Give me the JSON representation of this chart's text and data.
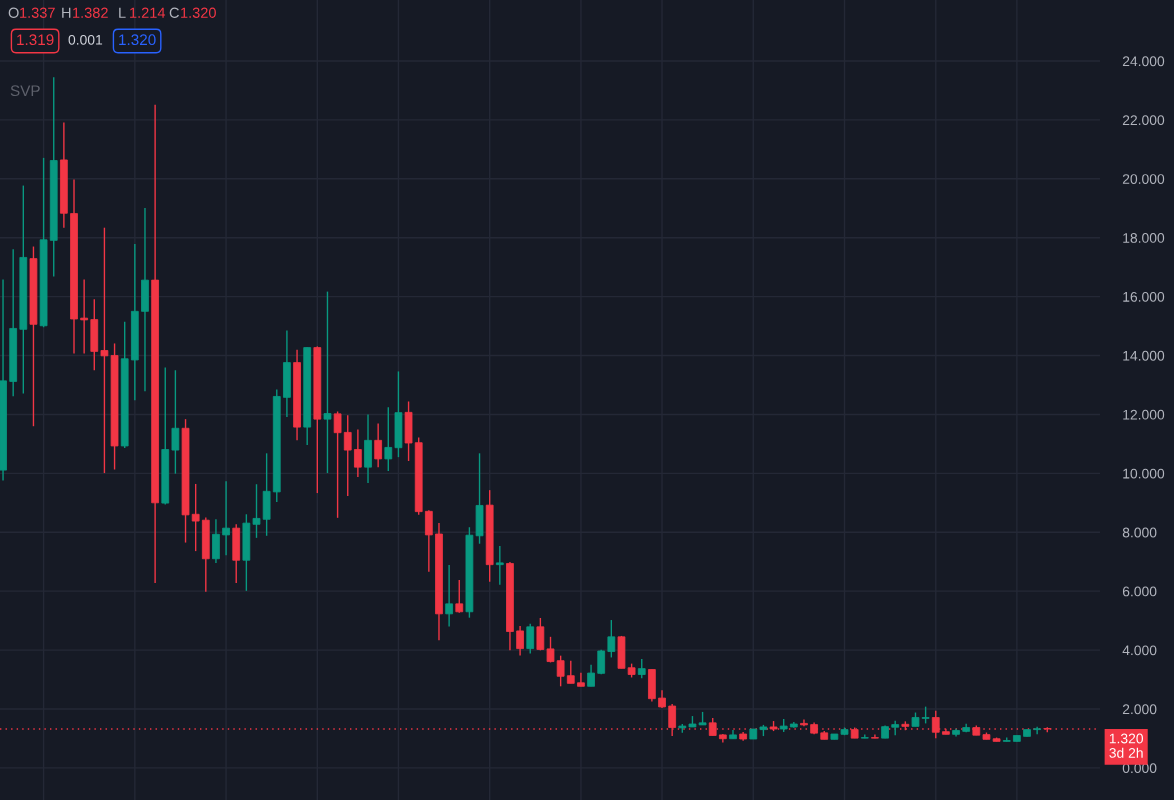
{
  "chart_data": {
    "type": "candlestick",
    "categories": [
      null,
      null,
      null,
      null,
      null,
      null,
      null,
      null,
      null,
      null,
      null,
      null,
      null,
      null,
      null,
      null,
      null,
      null,
      null,
      null,
      null,
      null,
      null,
      null,
      null,
      null,
      null,
      null,
      null,
      null,
      null,
      null,
      null,
      null,
      null,
      null,
      null,
      null,
      null,
      null,
      null,
      null,
      null,
      null,
      null,
      null,
      null,
      null,
      null,
      null,
      null,
      null,
      null,
      null,
      null,
      null,
      null,
      null,
      null,
      null,
      null,
      null,
      null,
      null,
      null,
      null,
      null,
      null,
      null,
      null,
      null,
      null,
      null,
      null,
      null,
      null,
      null,
      null,
      null,
      null,
      null,
      null,
      null,
      null,
      null,
      null,
      null,
      null,
      null,
      null,
      null,
      null,
      null,
      null,
      null,
      null,
      null,
      null,
      null,
      null,
      null,
      null,
      null,
      null
    ],
    "ohlc": [
      [
        10.11,
        16.58,
        9.76,
        13.14
      ],
      [
        13.12,
        17.61,
        12.62,
        14.92
      ],
      [
        14.89,
        19.77,
        12.71,
        17.33
      ],
      [
        17.29,
        17.7,
        11.6,
        15.06
      ],
      [
        15.01,
        20.71,
        14.96,
        17.93
      ],
      [
        17.91,
        23.45,
        16.68,
        20.62
      ],
      [
        20.64,
        21.91,
        18.34,
        18.83
      ],
      [
        18.82,
        19.98,
        14.07,
        15.24
      ],
      [
        15.27,
        16.58,
        14.07,
        15.21
      ],
      [
        15.22,
        15.91,
        13.5,
        14.14
      ],
      [
        14.17,
        18.34,
        10.01,
        13.99
      ],
      [
        14.0,
        14.41,
        10.13,
        10.93
      ],
      [
        10.93,
        15.15,
        10.86,
        13.89
      ],
      [
        13.85,
        17.79,
        12.48,
        15.5
      ],
      [
        15.5,
        19.01,
        12.79,
        16.56
      ],
      [
        16.56,
        22.51,
        6.28,
        9.0
      ],
      [
        8.99,
        13.59,
        8.94,
        10.81
      ],
      [
        10.79,
        13.5,
        9.99,
        11.53
      ],
      [
        11.53,
        11.84,
        7.65,
        8.59
      ],
      [
        8.61,
        9.64,
        7.36,
        8.38
      ],
      [
        8.41,
        8.5,
        5.98,
        7.1
      ],
      [
        7.1,
        8.44,
        6.96,
        7.93
      ],
      [
        7.91,
        9.73,
        7.22,
        8.14
      ],
      [
        8.14,
        8.27,
        6.28,
        7.05
      ],
      [
        7.05,
        8.61,
        6.01,
        8.31
      ],
      [
        8.27,
        9.63,
        7.81,
        8.47
      ],
      [
        8.44,
        10.68,
        7.88,
        9.39
      ],
      [
        9.37,
        12.85,
        9.03,
        12.61
      ],
      [
        12.58,
        14.85,
        11.91,
        13.76
      ],
      [
        13.76,
        14.2,
        11.12,
        11.57
      ],
      [
        11.57,
        14.27,
        10.96,
        14.27
      ],
      [
        14.27,
        14.31,
        9.33,
        11.84
      ],
      [
        11.84,
        16.17,
        10.01,
        12.03
      ],
      [
        12.02,
        12.1,
        8.49,
        11.38
      ],
      [
        11.39,
        11.97,
        9.23,
        10.79
      ],
      [
        10.81,
        11.49,
        9.88,
        10.21
      ],
      [
        10.21,
        12.0,
        9.67,
        11.12
      ],
      [
        11.12,
        11.69,
        10.21,
        10.49
      ],
      [
        10.49,
        12.24,
        10.08,
        10.88
      ],
      [
        10.87,
        13.46,
        10.55,
        12.06
      ],
      [
        12.07,
        12.44,
        10.42,
        11.03
      ],
      [
        11.04,
        11.22,
        8.59,
        8.7
      ],
      [
        8.71,
        8.75,
        6.66,
        7.91
      ],
      [
        7.94,
        8.31,
        4.33,
        5.23
      ],
      [
        5.23,
        6.89,
        4.8,
        5.57
      ],
      [
        5.57,
        6.38,
        5.27,
        5.3
      ],
      [
        5.3,
        8.17,
        5.1,
        7.9
      ],
      [
        7.88,
        10.68,
        7.61,
        8.91
      ],
      [
        8.92,
        9.43,
        6.32,
        6.9
      ],
      [
        6.9,
        7.53,
        6.22,
        6.96
      ],
      [
        6.94,
        6.99,
        3.99,
        4.63
      ],
      [
        4.65,
        4.82,
        3.82,
        4.05
      ],
      [
        4.05,
        4.89,
        3.88,
        4.79
      ],
      [
        4.79,
        5.09,
        3.99,
        4.02
      ],
      [
        4.04,
        4.45,
        3.58,
        3.61
      ],
      [
        3.64,
        3.81,
        2.77,
        3.11
      ],
      [
        3.13,
        3.64,
        2.87,
        2.87
      ],
      [
        2.89,
        3.23,
        2.77,
        2.77
      ],
      [
        2.77,
        3.5,
        2.77,
        3.22
      ],
      [
        3.21,
        4.01,
        3.18,
        3.97
      ],
      [
        3.95,
        5.02,
        3.75,
        4.45
      ],
      [
        4.45,
        4.48,
        3.38,
        3.38
      ],
      [
        3.4,
        3.54,
        3.07,
        3.17
      ],
      [
        3.17,
        3.7,
        3.04,
        3.37
      ],
      [
        3.34,
        3.34,
        2.25,
        2.35
      ],
      [
        2.37,
        2.64,
        2.03,
        2.07
      ],
      [
        2.1,
        2.17,
        1.08,
        1.37
      ],
      [
        1.36,
        1.49,
        1.19,
        1.42
      ],
      [
        1.39,
        1.76,
        1.39,
        1.49
      ],
      [
        1.46,
        1.9,
        1.46,
        1.53
      ],
      [
        1.53,
        1.69,
        1.1,
        1.1
      ],
      [
        1.12,
        1.15,
        0.86,
        0.99
      ],
      [
        0.99,
        1.29,
        0.99,
        1.12
      ],
      [
        1.15,
        1.22,
        0.92,
        0.98
      ],
      [
        0.98,
        1.32,
        0.98,
        1.32
      ],
      [
        1.3,
        1.46,
        1.08,
        1.39
      ],
      [
        1.39,
        1.59,
        1.25,
        1.32
      ],
      [
        1.32,
        1.66,
        1.22,
        1.42
      ],
      [
        1.39,
        1.56,
        1.36,
        1.49
      ],
      [
        1.51,
        1.64,
        1.41,
        1.46
      ],
      [
        1.47,
        1.54,
        1.14,
        1.18
      ],
      [
        1.19,
        1.25,
        0.97,
        0.97
      ],
      [
        0.97,
        1.15,
        0.97,
        1.15
      ],
      [
        1.14,
        1.37,
        1.11,
        1.3
      ],
      [
        1.3,
        1.37,
        1.01,
        1.01
      ],
      [
        1.01,
        1.13,
        1.01,
        1.03
      ],
      [
        1.03,
        1.13,
        1.01,
        1.01
      ],
      [
        1.01,
        1.44,
        1.01,
        1.4
      ],
      [
        1.38,
        1.6,
        1.11,
        1.47
      ],
      [
        1.48,
        1.58,
        1.28,
        1.41
      ],
      [
        1.41,
        1.88,
        1.41,
        1.71
      ],
      [
        1.68,
        2.08,
        1.51,
        1.71
      ],
      [
        1.71,
        1.94,
        1.01,
        1.21
      ],
      [
        1.23,
        1.33,
        1.14,
        1.14
      ],
      [
        1.14,
        1.33,
        1.07,
        1.27
      ],
      [
        1.24,
        1.5,
        1.21,
        1.37
      ],
      [
        1.37,
        1.44,
        1.11,
        1.11
      ],
      [
        1.13,
        1.2,
        0.97,
        0.97
      ],
      [
        0.99,
        1.03,
        0.9,
        0.9
      ],
      [
        0.9,
        1.03,
        0.9,
        0.93
      ],
      [
        0.9,
        1.1,
        0.9,
        1.1
      ],
      [
        1.07,
        1.3,
        1.07,
        1.3
      ],
      [
        1.3,
        1.4,
        1.14,
        1.33
      ],
      [
        1.337,
        1.382,
        1.214,
        1.32
      ]
    ],
    "ylim": [
      -1.09,
      26.07
    ],
    "yticks": [
      {
        "value": 0,
        "label": "0.000"
      },
      {
        "value": 2,
        "label": "2.000"
      },
      {
        "value": 4,
        "label": "4.000"
      },
      {
        "value": 6,
        "label": "6.000"
      },
      {
        "value": 8,
        "label": "8.000"
      },
      {
        "value": 10,
        "label": "10.000"
      },
      {
        "value": 12,
        "label": "12.000"
      },
      {
        "value": 14,
        "label": "14.000"
      },
      {
        "value": 16,
        "label": "16.000"
      },
      {
        "value": 18,
        "label": "18.000"
      },
      {
        "value": 20,
        "label": "20.000"
      },
      {
        "value": 22,
        "label": "22.000"
      },
      {
        "value": 24,
        "label": "24.000"
      }
    ],
    "grid": true,
    "tick_labels": "y",
    "ref_lines": [
      {
        "axis": "y",
        "value": 1.32,
        "label": "1.320\n3d 2h",
        "color": "#f23645",
        "line_style": "dotted"
      }
    ],
    "annotations": [
      "O1.337",
      "H1.382",
      "L1.214",
      "C1.320",
      "1.319",
      "0.001",
      "1.320",
      "SVP"
    ]
  }
}
